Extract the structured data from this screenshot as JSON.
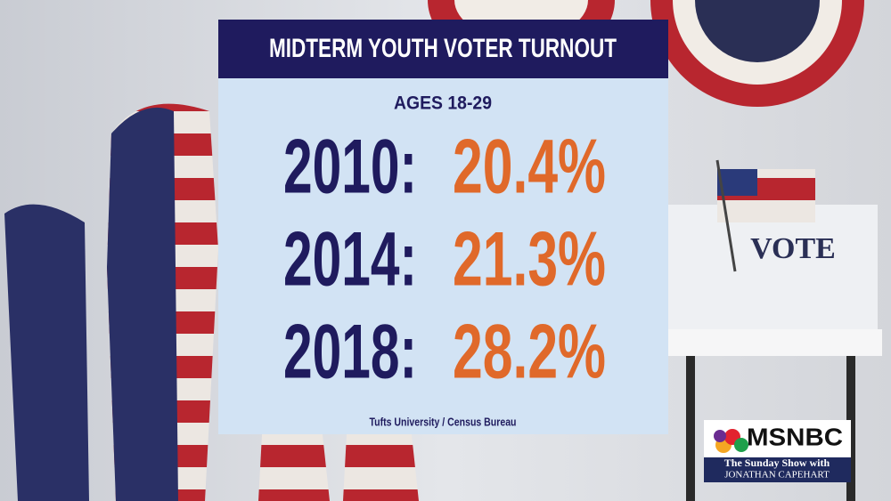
{
  "card": {
    "title": "MIDTERM YOUTH VOTER TURNOUT",
    "subtitle": "AGES 18-29",
    "rows": [
      {
        "year": "2010:",
        "value": "20.4%"
      },
      {
        "year": "2014:",
        "value": "21.3%"
      },
      {
        "year": "2018:",
        "value": "28.2%"
      }
    ],
    "source": "Tufts University / Census Bureau"
  },
  "scene": {
    "booth_sign": "VOTE"
  },
  "logo": {
    "network": "MSNBC",
    "show_line1": "The Sunday Show with",
    "show_line2": "JONATHAN CAPEHART"
  }
}
